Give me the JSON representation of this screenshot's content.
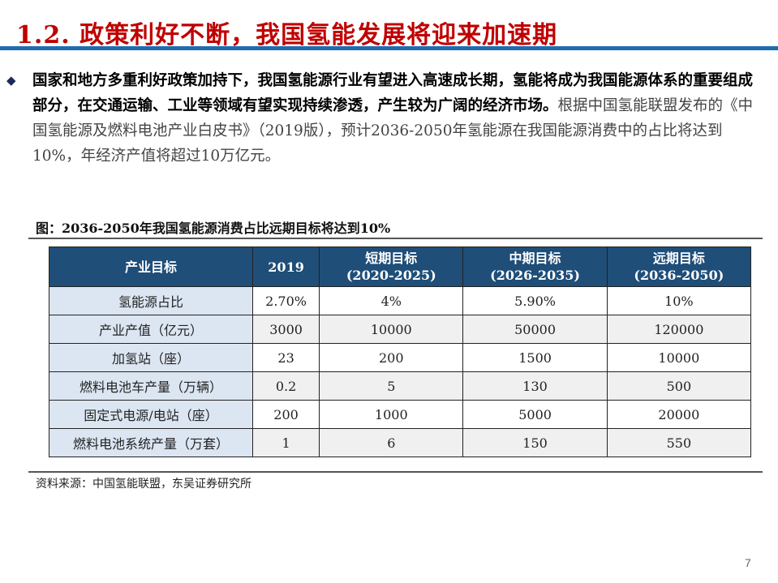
{
  "title": "1.2. 政策利好不断，我国氢能发展将迎来加速期",
  "bullet": {
    "icon": "diamond-bullet-icon",
    "bold_text": "国家和地方多重利好政策加持下，我国氢能源行业有望进入高速成长期，氢能将成为我国能源体系的重要组成部分，在交通运输、工业等领域有望实现持续渗透，产生较为广阔的经济市场。",
    "normal_text": "根据中国氢能联盟发布的《中国氢能源及燃料电池产业白皮书》（2019版），预计2036-2050年氢能源在我国能源消费中的占比将达到10%，年经济产值将超过10万亿元。"
  },
  "caption": "图：2036-2050年我国氢能源消费占比远期目标将达到10%",
  "table": {
    "headers": [
      [
        "产业目标",
        ""
      ],
      [
        "2019",
        ""
      ],
      [
        "短期目标",
        "(2020-2025)"
      ],
      [
        "中期目标",
        "(2026-2035)"
      ],
      [
        "远期目标",
        "(2036-2050)"
      ]
    ],
    "rows": [
      [
        "氢能源占比",
        "2.70%",
        "4%",
        "5.90%",
        "10%"
      ],
      [
        "产业产值（亿元）",
        "3000",
        "10000",
        "50000",
        "120000"
      ],
      [
        "加氢站（座）",
        "23",
        "200",
        "1500",
        "10000"
      ],
      [
        "燃料电池车产量（万辆）",
        "0.2",
        "5",
        "130",
        "500"
      ],
      [
        "固定式电源/电站（座）",
        "200",
        "1000",
        "5000",
        "20000"
      ],
      [
        "燃料电池系统产量（万套）",
        "1",
        "6",
        "150",
        "550"
      ]
    ]
  },
  "source": "资料来源：中国氢能联盟，东吴证券研究所",
  "page_number": "7",
  "colors": {
    "title": "#c00000",
    "rule": "#1f6bb0",
    "header_bg": "#1f4e79",
    "first_col_bg": "#dce6f2"
  }
}
